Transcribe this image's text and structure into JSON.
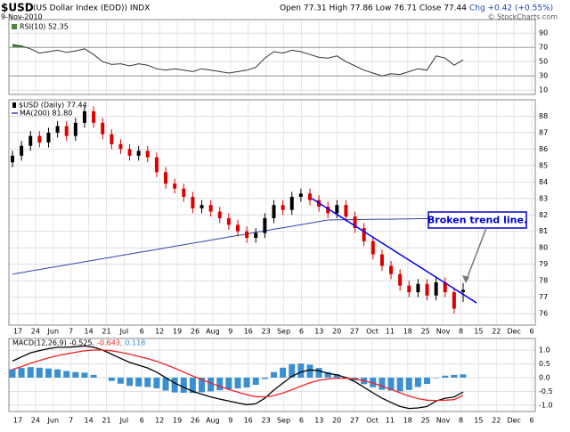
{
  "header": {
    "symbol": "$USD",
    "name": "(US Dollar Index (EOD)) INDX",
    "date": "9-Nov-2010",
    "quote": "Open 77.31 High 77.86 Low 76.71 Close 77.44",
    "change": "Chg +0.42 (+0.55%)",
    "credit": "© StockCharts.com"
  },
  "chart_data": [
    {
      "type": "line",
      "legend": "RSI(10) 52.35",
      "color": "#333333",
      "values": [
        74,
        72,
        68,
        62,
        64,
        66,
        63,
        65,
        68,
        60,
        50,
        46,
        47,
        44,
        47,
        45,
        40,
        38,
        40,
        38,
        36,
        40,
        38,
        36,
        34,
        36,
        38,
        42,
        55,
        64,
        62,
        66,
        64,
        60,
        56,
        55,
        58,
        50,
        44,
        38,
        34,
        30,
        33,
        32,
        36,
        40,
        38,
        58,
        55,
        45,
        52.35
      ],
      "ylim": [
        4,
        109
      ],
      "yticks": [
        90,
        70,
        50,
        30,
        10
      ],
      "grid": true,
      "fill_above": 70,
      "fill_above_color": "#4e8a3a",
      "fill_below": 30,
      "fill_below_color": "#8b5a3c"
    },
    {
      "type": "candlestick",
      "legend": "$USD (Daily) 77.44",
      "up_color": "#000000",
      "down_color": "#dd0000",
      "open": [
        85.2,
        85.6,
        86.2,
        86.8,
        86.4,
        87.0,
        87.4,
        86.8,
        87.6,
        88.3,
        87.6,
        86.9,
        86.3,
        86.0,
        85.6,
        85.9,
        85.5,
        84.6,
        83.9,
        83.6,
        83.1,
        82.4,
        82.6,
        82.2,
        81.8,
        81.4,
        81.0,
        80.6,
        80.9,
        81.8,
        82.6,
        82.3,
        83.1,
        83.3,
        82.9,
        82.5,
        82.1,
        82.6,
        81.9,
        81.2,
        80.4,
        79.6,
        78.9,
        78.4,
        77.7,
        77.3,
        77.8,
        77.1,
        77.9,
        77.3,
        77.31
      ],
      "high": [
        85.9,
        86.5,
        87.1,
        87.1,
        87.3,
        87.7,
        87.7,
        87.9,
        88.6,
        88.6,
        87.9,
        87.2,
        86.6,
        86.3,
        86.2,
        86.2,
        85.8,
        84.9,
        84.2,
        83.9,
        83.4,
        82.9,
        82.9,
        82.5,
        82.1,
        81.7,
        81.3,
        81.2,
        82.1,
        82.9,
        82.9,
        83.4,
        83.6,
        83.6,
        83.2,
        82.8,
        82.9,
        82.9,
        82.2,
        81.5,
        80.7,
        79.9,
        79.2,
        78.7,
        78.0,
        78.1,
        78.1,
        78.2,
        78.2,
        77.6,
        77.86
      ],
      "low": [
        84.9,
        85.3,
        85.9,
        86.1,
        86.1,
        86.7,
        86.5,
        86.5,
        87.3,
        87.3,
        86.6,
        86.0,
        85.7,
        85.3,
        85.3,
        85.2,
        84.3,
        83.6,
        83.3,
        82.8,
        82.1,
        82.1,
        81.9,
        81.5,
        81.1,
        80.7,
        80.3,
        80.3,
        80.6,
        81.5,
        82.0,
        82.0,
        82.8,
        82.6,
        82.2,
        81.8,
        81.8,
        81.6,
        80.9,
        80.1,
        79.3,
        78.6,
        78.1,
        77.4,
        77.0,
        77.0,
        76.8,
        76.8,
        77.0,
        76.0,
        76.71
      ],
      "close": [
        85.6,
        86.2,
        86.8,
        86.4,
        87.0,
        87.4,
        86.8,
        87.6,
        88.3,
        87.6,
        86.9,
        86.3,
        86.0,
        85.6,
        85.9,
        85.5,
        84.6,
        83.9,
        83.6,
        83.1,
        82.4,
        82.6,
        82.2,
        81.8,
        81.4,
        81.0,
        80.6,
        80.9,
        81.8,
        82.6,
        82.3,
        83.1,
        83.3,
        82.9,
        82.5,
        82.1,
        82.6,
        81.9,
        81.2,
        80.4,
        79.6,
        78.9,
        78.4,
        77.7,
        77.3,
        77.8,
        77.1,
        77.9,
        77.3,
        76.3,
        77.44
      ],
      "series": [
        {
          "name": "MA(200) 81.80",
          "color": "#3344aa",
          "values": [
            78.4,
            78.49,
            78.59,
            78.68,
            78.78,
            78.87,
            78.96,
            79.06,
            79.15,
            79.25,
            79.34,
            79.43,
            79.53,
            79.62,
            79.72,
            79.81,
            79.9,
            80.0,
            80.09,
            80.19,
            80.28,
            80.37,
            80.47,
            80.56,
            80.66,
            80.75,
            80.84,
            80.94,
            81.03,
            81.13,
            81.22,
            81.31,
            81.41,
            81.5,
            81.6,
            81.69,
            81.7,
            81.71,
            81.71,
            81.72,
            81.73,
            81.74,
            81.74,
            81.75,
            81.76,
            81.77,
            81.77,
            81.78,
            81.79,
            81.79,
            81.8
          ]
        }
      ],
      "trend_line": {
        "x": [
          33.2,
          51.5
        ],
        "values": [
          83.0,
          76.65
        ],
        "color": "#0000ee"
      },
      "annotation": "Broken trend line.",
      "ylim": [
        75.3,
        89.0
      ],
      "yticks": [
        76,
        77,
        78,
        79,
        80,
        81,
        82,
        83,
        84,
        85,
        86,
        87,
        88
      ],
      "grid": true,
      "x_labels": [
        "17",
        "24",
        "Jun",
        "7",
        "14",
        "21",
        "Jul",
        "6",
        "12",
        "19",
        "26",
        "Aug",
        "9",
        "16",
        "23",
        "Sep",
        "6",
        "13",
        "20",
        "27",
        "Oct",
        "11",
        "18",
        "25",
        "Nov",
        "8",
        "15",
        "22",
        "Dec",
        "6"
      ]
    },
    {
      "type": "line",
      "legend": [
        "MACD(12,26,9)",
        "-0.525,",
        "-0.643,",
        "0.118"
      ],
      "series": [
        {
          "color": "#000000",
          "values": [
            0.6,
            0.75,
            0.9,
            0.98,
            1.05,
            1.1,
            1.1,
            1.12,
            1.15,
            1.1,
            1.0,
            0.85,
            0.7,
            0.55,
            0.45,
            0.35,
            0.2,
            0.0,
            -0.2,
            -0.35,
            -0.5,
            -0.6,
            -0.7,
            -0.78,
            -0.85,
            -0.92,
            -0.98,
            -0.95,
            -0.75,
            -0.45,
            -0.2,
            0.05,
            0.2,
            0.28,
            0.25,
            0.15,
            0.1,
            0.0,
            -0.15,
            -0.35,
            -0.55,
            -0.75,
            -0.9,
            -1.05,
            -1.12,
            -1.1,
            -1.05,
            -0.85,
            -0.75,
            -0.7,
            -0.525
          ]
        },
        {
          "color": "#ee2222",
          "values": [
            0.3,
            0.4,
            0.52,
            0.62,
            0.72,
            0.8,
            0.86,
            0.92,
            0.97,
            1.0,
            1.0,
            0.97,
            0.92,
            0.85,
            0.77,
            0.69,
            0.59,
            0.47,
            0.34,
            0.2,
            0.06,
            -0.07,
            -0.2,
            -0.32,
            -0.43,
            -0.53,
            -0.62,
            -0.69,
            -0.7,
            -0.65,
            -0.56,
            -0.44,
            -0.31,
            -0.19,
            -0.1,
            -0.05,
            -0.02,
            -0.02,
            -0.05,
            -0.11,
            -0.2,
            -0.31,
            -0.43,
            -0.55,
            -0.67,
            -0.76,
            -0.82,
            -0.83,
            -0.82,
            -0.8,
            -0.643
          ]
        },
        {
          "color": "#3a8fd0",
          "style": "bar",
          "values": [
            0.3,
            0.35,
            0.38,
            0.36,
            0.33,
            0.3,
            0.24,
            0.2,
            0.18,
            0.1,
            0.0,
            -0.12,
            -0.22,
            -0.3,
            -0.32,
            -0.34,
            -0.39,
            -0.47,
            -0.54,
            -0.55,
            -0.56,
            -0.53,
            -0.5,
            -0.46,
            -0.42,
            -0.39,
            -0.36,
            -0.26,
            -0.05,
            0.2,
            0.36,
            0.49,
            0.51,
            0.47,
            0.35,
            0.2,
            0.12,
            0.02,
            -0.1,
            -0.24,
            -0.35,
            -0.44,
            -0.47,
            -0.5,
            -0.45,
            -0.34,
            -0.23,
            -0.02,
            0.07,
            0.1,
            0.118
          ]
        }
      ],
      "ylim": [
        -1.23,
        1.42
      ],
      "yticks": [
        {
          "value": 1,
          "label": "1.0"
        },
        {
          "value": 0.5,
          "label": "0.5"
        },
        {
          "value": 0,
          "label": "0.0"
        },
        {
          "value": -0.5,
          "label": "-0.5"
        },
        {
          "value": -1,
          "label": "-1.0"
        }
      ],
      "grid": true
    }
  ]
}
